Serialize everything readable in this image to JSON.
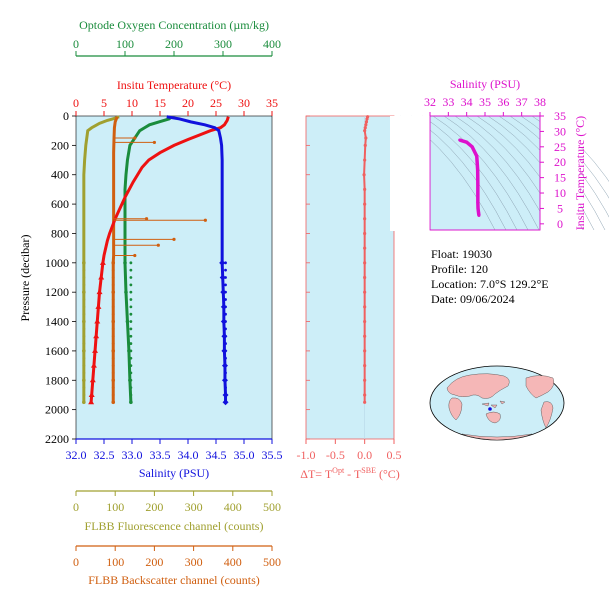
{
  "colors": {
    "oxygen": "#1a8c3c",
    "temperature": "#ee1111",
    "salinity": "#1111dd",
    "fluorescence": "#a0a030",
    "backscatter": "#d05f10",
    "delta": "#f06060",
    "ts": "#dd11cc",
    "panel_bg": "#cdeef8"
  },
  "chart_data": [
    {
      "type": "line",
      "panel": "main-profile",
      "ylabel": "Pressure (decibar)",
      "ylim": [
        2200,
        0
      ],
      "yticks": [
        0,
        200,
        400,
        600,
        800,
        1000,
        1200,
        1400,
        1600,
        1800,
        2000,
        2200
      ],
      "axes": {
        "oxygen": {
          "label": "Optode Oxygen Concentration (µm/kg)",
          "lim": [
            0,
            400
          ],
          "ticks": [
            0,
            100,
            200,
            300,
            400
          ]
        },
        "temperature": {
          "label": "Insitu Temperature (°C)",
          "lim": [
            0,
            35
          ],
          "ticks": [
            0,
            5,
            10,
            15,
            20,
            25,
            30,
            35
          ]
        },
        "salinity": {
          "label": "Salinity (PSU)",
          "lim": [
            32.0,
            35.5
          ],
          "ticks": [
            "32.0",
            "32.5",
            "33.0",
            "33.5",
            "34.0",
            "34.5",
            "35.0",
            "35.5"
          ]
        },
        "fluorescence": {
          "label": "FLBB Fluorescence channel (counts)",
          "lim": [
            0,
            500
          ],
          "ticks": [
            0,
            100,
            200,
            300,
            400,
            500
          ]
        },
        "backscatter": {
          "label": "FLBB Backscatter channel (counts)",
          "lim": [
            0,
            500
          ],
          "ticks": [
            0,
            100,
            200,
            300,
            400,
            500
          ]
        }
      },
      "series": [
        {
          "name": "Salinity",
          "axis": "salinity",
          "points": [
            [
              33.62,
              5
            ],
            [
              33.85,
              20
            ],
            [
              34.05,
              40
            ],
            [
              34.3,
              60
            ],
            [
              34.48,
              80
            ],
            [
              34.55,
              100
            ],
            [
              34.58,
              150
            ],
            [
              34.6,
              200
            ],
            [
              34.61,
              300
            ],
            [
              34.61,
              400
            ],
            [
              34.61,
              500
            ],
            [
              34.61,
              600
            ],
            [
              34.61,
              700
            ],
            [
              34.61,
              800
            ],
            [
              34.61,
              900
            ],
            [
              34.61,
              1000
            ],
            [
              34.62,
              1100
            ],
            [
              34.63,
              1200
            ],
            [
              34.64,
              1300
            ],
            [
              34.64,
              1400
            ],
            [
              34.65,
              1500
            ],
            [
              34.65,
              1600
            ],
            [
              34.66,
              1700
            ],
            [
              34.66,
              1800
            ],
            [
              34.67,
              1900
            ],
            [
              34.67,
              1950
            ]
          ]
        },
        {
          "name": "Insitu Temperature",
          "axis": "temperature",
          "points": [
            [
              27.2,
              5
            ],
            [
              27.0,
              30
            ],
            [
              26.5,
              60
            ],
            [
              25.8,
              80
            ],
            [
              24.0,
              100
            ],
            [
              22.0,
              130
            ],
            [
              20.0,
              160
            ],
            [
              17.5,
              200
            ],
            [
              15.0,
              250
            ],
            [
              13.0,
              300
            ],
            [
              11.8,
              350
            ],
            [
              11.0,
              400
            ],
            [
              10.2,
              450
            ],
            [
              9.5,
              500
            ],
            [
              8.8,
              550
            ],
            [
              8.2,
              600
            ],
            [
              7.6,
              650
            ],
            [
              7.0,
              700
            ],
            [
              6.5,
              750
            ],
            [
              6.0,
              800
            ],
            [
              5.6,
              850
            ],
            [
              5.3,
              900
            ],
            [
              5.0,
              950
            ],
            [
              4.8,
              1000
            ],
            [
              4.5,
              1100
            ],
            [
              4.2,
              1200
            ],
            [
              4.0,
              1300
            ],
            [
              3.8,
              1400
            ],
            [
              3.6,
              1500
            ],
            [
              3.4,
              1600
            ],
            [
              3.2,
              1700
            ],
            [
              3.0,
              1800
            ],
            [
              2.8,
              1900
            ],
            [
              2.7,
              1950
            ]
          ]
        },
        {
          "name": "Optode Oxygen",
          "axis": "oxygen",
          "points": [
            [
              195,
              5
            ],
            [
              190,
              20
            ],
            [
              170,
              40
            ],
            [
              150,
              60
            ],
            [
              140,
              80
            ],
            [
              130,
              100
            ],
            [
              120,
              150
            ],
            [
              110,
              200
            ],
            [
              105,
              300
            ],
            [
              102,
              400
            ],
            [
              100,
              500
            ],
            [
              100,
              600
            ],
            [
              100,
              700
            ],
            [
              100,
              800
            ],
            [
              100,
              900
            ],
            [
              100,
              1000
            ],
            [
              102,
              1200
            ],
            [
              105,
              1400
            ],
            [
              108,
              1600
            ],
            [
              110,
              1800
            ],
            [
              112,
              1950
            ]
          ]
        },
        {
          "name": "FLBB Fluorescence",
          "axis": "fluorescence",
          "points": [
            [
              110,
              5
            ],
            [
              100,
              15
            ],
            [
              80,
              30
            ],
            [
              60,
              50
            ],
            [
              40,
              80
            ],
            [
              30,
              100
            ],
            [
              25,
              200
            ],
            [
              22,
              300
            ],
            [
              20,
              400
            ],
            [
              20,
              500
            ],
            [
              20,
              600
            ],
            [
              20,
              700
            ],
            [
              20,
              800
            ],
            [
              20,
              900
            ],
            [
              20,
              1000
            ],
            [
              20,
              1200
            ],
            [
              20,
              1400
            ],
            [
              20,
              1600
            ],
            [
              20,
              1800
            ],
            [
              20,
              1950
            ]
          ]
        },
        {
          "name": "FLBB Backscatter",
          "axis": "backscatter",
          "points": [
            [
              105,
              5
            ],
            [
              100,
              40
            ],
            [
              98,
              80
            ],
            [
              97,
              150
            ],
            [
              96,
              250
            ],
            [
              96,
              350
            ],
            [
              96,
              450
            ],
            [
              96,
              550
            ],
            [
              96,
              650
            ],
            [
              96,
              750
            ],
            [
              96,
              850
            ],
            [
              96,
              950
            ],
            [
              95,
              1000
            ],
            [
              95,
              1200
            ],
            [
              95,
              1400
            ],
            [
              95,
              1600
            ],
            [
              95,
              1800
            ],
            [
              95,
              1950
            ]
          ]
        }
      ],
      "backscatter_spikes": [
        [
          150,
          150
        ],
        [
          200,
          180
        ],
        [
          180,
          700
        ],
        [
          330,
          710
        ],
        [
          250,
          840
        ],
        [
          210,
          880
        ],
        [
          150,
          950
        ]
      ]
    },
    {
      "type": "scatter",
      "panel": "delta-t",
      "xlabel": "ΔT= T^Opt - T^SBE (°C)",
      "xlim": [
        -1.0,
        0.5
      ],
      "xticks": [
        "-1.0",
        "-0.5",
        "0.0",
        "0.5"
      ],
      "ylim": [
        2200,
        0
      ],
      "points": [
        [
          0.05,
          5
        ],
        [
          0.04,
          20
        ],
        [
          0.03,
          40
        ],
        [
          0.02,
          60
        ],
        [
          0.01,
          80
        ],
        [
          0.0,
          100
        ],
        [
          0.02,
          150
        ],
        [
          0.01,
          200
        ],
        [
          0.0,
          300
        ],
        [
          -0.01,
          400
        ],
        [
          0.0,
          500
        ],
        [
          0.0,
          600
        ],
        [
          0.0,
          700
        ],
        [
          0.0,
          800
        ],
        [
          0.0,
          900
        ],
        [
          0.0,
          1000
        ],
        [
          0.0,
          1100
        ],
        [
          0.0,
          1200
        ],
        [
          0.0,
          1300
        ],
        [
          0.0,
          1400
        ],
        [
          0.0,
          1500
        ],
        [
          0.0,
          1600
        ],
        [
          0.0,
          1700
        ],
        [
          0.0,
          1800
        ],
        [
          0.0,
          1900
        ],
        [
          0.0,
          1950
        ]
      ]
    },
    {
      "type": "line",
      "panel": "ts-diagram",
      "xlabel": "Salinity (PSU)",
      "ylabel": "Insitu Temperature (°C)",
      "xlim": [
        32,
        38
      ],
      "ylim": [
        -2,
        35
      ],
      "xticks": [
        32,
        33,
        34,
        35,
        36,
        37,
        38
      ],
      "yticks": [
        0,
        5,
        10,
        15,
        20,
        25,
        30,
        35
      ],
      "points": [
        [
          33.62,
          27.2
        ],
        [
          34.0,
          26.5
        ],
        [
          34.3,
          25.0
        ],
        [
          34.55,
          22.0
        ],
        [
          34.6,
          17.5
        ],
        [
          34.61,
          13.0
        ],
        [
          34.61,
          10.0
        ],
        [
          34.61,
          7.0
        ],
        [
          34.62,
          5.0
        ],
        [
          34.65,
          3.5
        ],
        [
          34.67,
          2.7
        ]
      ]
    }
  ],
  "float_info": {
    "float": "Float:  19030",
    "profile": "Profile:  120",
    "location": "Location:  7.0°S  129.2°E",
    "date": "Date:  09/06/2024"
  }
}
